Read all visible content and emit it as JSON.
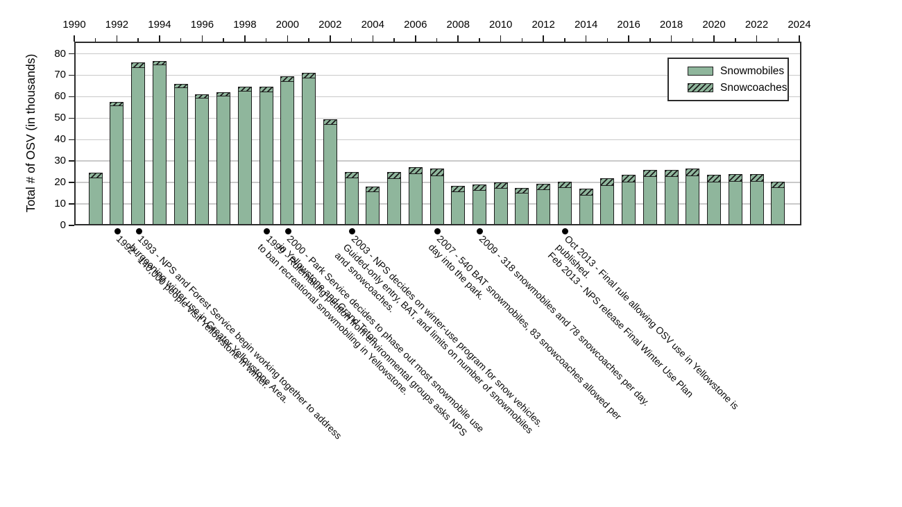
{
  "colors": {
    "bar_fill": "#8fb69c",
    "bar_border": "#1c1c1c",
    "gridline": "#c9c9c9",
    "frame": "#2b2b2b",
    "dot": "#000000",
    "text": "#000000",
    "background": "#ffffff"
  },
  "legend": {
    "items": [
      {
        "label": "Snowmobiles",
        "style": "solid"
      },
      {
        "label": "Snowcoaches",
        "style": "hatched"
      }
    ]
  },
  "chart_data": {
    "type": "bar",
    "stacked": true,
    "title": "",
    "xlabel": "",
    "ylabel": "Total # of OSV (in thousands)",
    "grid": true,
    "legend_position": "top-right",
    "x_axis": {
      "min": 1990,
      "max": 2024,
      "tick_step": 1,
      "label_step": 2,
      "labels": [
        1990,
        1992,
        1994,
        1996,
        1998,
        2000,
        2002,
        2004,
        2006,
        2008,
        2010,
        2012,
        2014,
        2016,
        2018,
        2020,
        2022,
        2024
      ]
    },
    "y_axis": {
      "ticks": [
        0,
        10,
        20,
        30,
        40,
        50,
        60,
        70,
        80
      ],
      "min": 0,
      "max": 85.6
    },
    "categories": [
      1991,
      1992,
      1993,
      1994,
      1995,
      1996,
      1997,
      1998,
      1999,
      2000,
      2001,
      2002,
      2003,
      2004,
      2005,
      2006,
      2007,
      2008,
      2009,
      2010,
      2011,
      2012,
      2013,
      2014,
      2015,
      2016,
      2017,
      2018,
      2019,
      2020,
      2021,
      2022,
      2023
    ],
    "series": [
      {
        "name": "Snowmobiles",
        "values": [
          22.5,
          56,
          74,
          75,
          64.5,
          59.5,
          60.5,
          63,
          62.5,
          67.5,
          69,
          47.5,
          22.5,
          16,
          22,
          24.5,
          23.5,
          16,
          16.5,
          17.5,
          15.5,
          17,
          18,
          14.5,
          19,
          20.5,
          23,
          23,
          23.5,
          20.5,
          21,
          21,
          18
        ]
      },
      {
        "name": "Snowcoaches",
        "values": [
          2,
          1.5,
          2,
          1.5,
          1.5,
          1.5,
          1.5,
          1.5,
          2,
          2,
          2,
          2,
          2.5,
          2,
          3,
          2.5,
          3,
          2.5,
          2.5,
          2.5,
          2,
          2.5,
          2.5,
          2.5,
          3,
          3,
          3,
          3,
          3,
          3,
          3,
          3,
          2.5
        ]
      }
    ],
    "annotations": [
      {
        "year": 1992,
        "lines": [
          "1992 - 140,000 people visit Yellowstone in winter."
        ]
      },
      {
        "year": 1993,
        "lines": [
          "1993 - NPS and Forest Service begin working together to address",
          "burgeoning winter use in Greater Yellowstone Area."
        ]
      },
      {
        "year": 1999,
        "lines": [
          "1999 - Rulemaking petition from environmental groups asks NPS",
          "to ban recreational snowmobiling in Yellowstone."
        ]
      },
      {
        "year": 2000,
        "lines": [
          "2000 - Park Service decides to phase out most snowmobile use",
          "in Yellowstone and Grand Teton."
        ]
      },
      {
        "year": 2003,
        "lines": [
          "2003 - NPS decides on winter-use program for snow vehicles.",
          "Guided-only entry, BAT, and limits on number of snowmobiles",
          "and snowcoaches."
        ]
      },
      {
        "year": 2007,
        "lines": [
          "2007 - 540 BAT snowmobiles, 83 snowcoaches allowed per",
          "day into the park."
        ]
      },
      {
        "year": 2009,
        "lines": [
          "2009 - 318 snowmobiles and 78 snowcoaches per day."
        ]
      },
      {
        "year": 2013,
        "lines": [
          "Oct 2013 - Final rule allowing OSV use in Yellowstone is",
          "published.",
          "Feb 2013 - NPS release Final Winter Use Plan"
        ]
      }
    ]
  }
}
